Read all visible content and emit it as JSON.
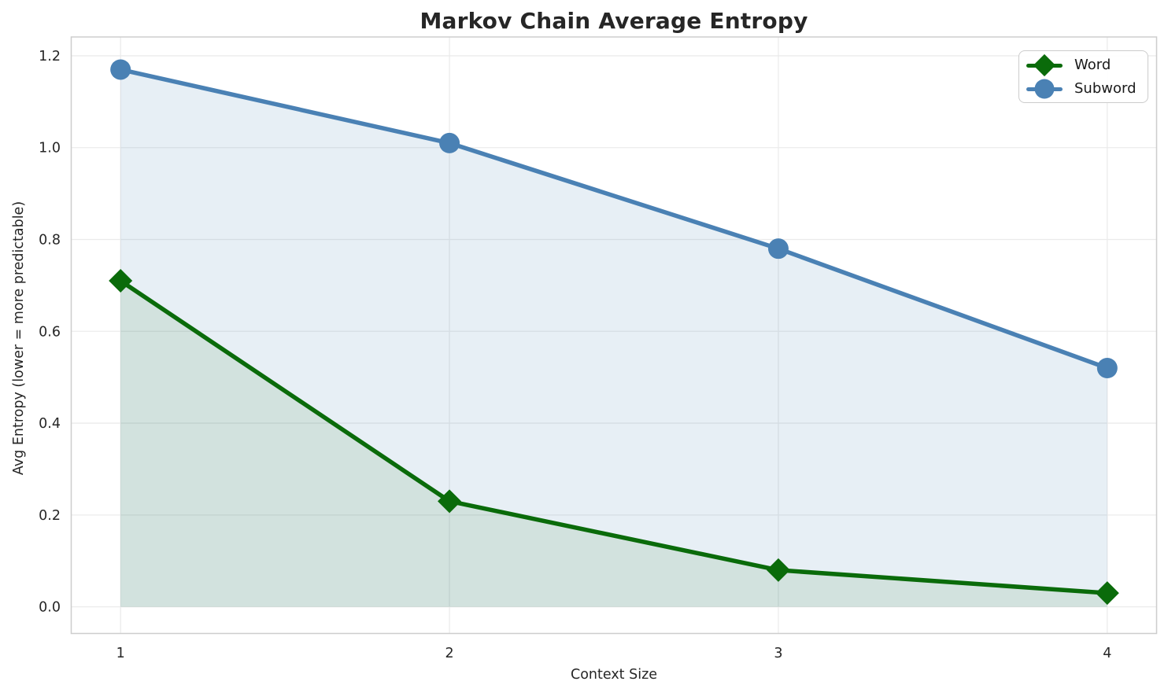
{
  "figure": {
    "title": "Markov Chain Average Entropy",
    "xlabel": "Context Size",
    "ylabel": "Avg Entropy (lower = more predictable)"
  },
  "legend": {
    "items": [
      {
        "label": "Word",
        "marker": "diamond",
        "color": "#0a6b0a"
      },
      {
        "label": "Subword",
        "marker": "circle",
        "color": "#4a81b4"
      }
    ]
  },
  "chart_data": {
    "type": "line",
    "title": "Markov Chain Average Entropy",
    "xlabel": "Context Size",
    "ylabel": "Avg Entropy (lower = more predictable)",
    "x": [
      1,
      2,
      3,
      4
    ],
    "series": [
      {
        "name": "Word",
        "values": [
          0.71,
          0.23,
          0.08,
          0.03
        ],
        "color": "#0a6b0a",
        "marker": "diamond",
        "fill": "rgba(0,100,0,0.09)"
      },
      {
        "name": "Subword",
        "values": [
          1.17,
          1.01,
          0.78,
          0.52
        ],
        "color": "#4a81b4",
        "marker": "circle",
        "fill": "rgba(70,130,180,0.13)"
      }
    ],
    "xticks": [
      "1",
      "2",
      "3",
      "4"
    ],
    "yticks": [
      "0.0",
      "0.2",
      "0.4",
      "0.6",
      "0.8",
      "1.0",
      "1.2"
    ],
    "xlim": [
      0.85,
      4.15
    ],
    "ylim": [
      -0.058,
      1.241
    ],
    "grid": true,
    "grid_color": "#ebebeb",
    "spine_color": "#cdcdcd",
    "tick_color": "#262626",
    "fill_to_zero": true,
    "legend_position": "upper right"
  }
}
